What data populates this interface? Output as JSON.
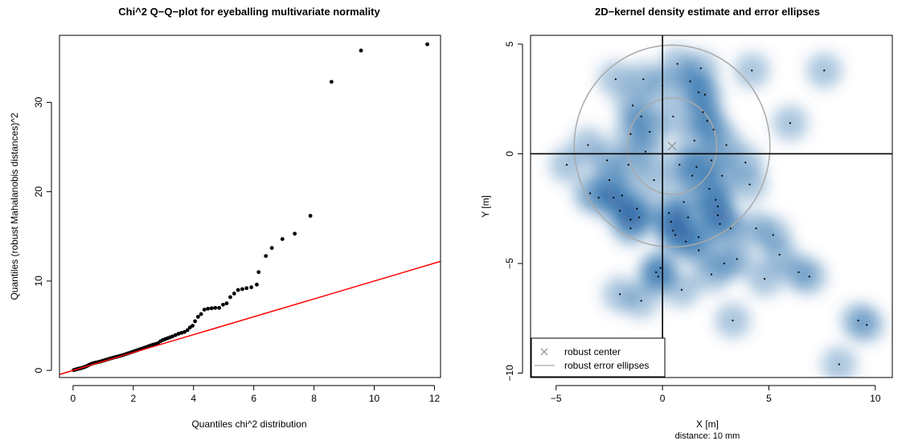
{
  "chart_data": [
    {
      "type": "scatter",
      "title": "Chi^2 Q−Q−plot for eyeballing multivariate normality",
      "xlabel": "Quantiles chi^2 distribution",
      "ylabel": "Quantiles (robust Mahalanobis distances)^2",
      "xlim": [
        -0.45,
        12.2
      ],
      "ylim": [
        -0.8,
        37.5
      ],
      "xticks": [
        0,
        2,
        4,
        6,
        8,
        10,
        12
      ],
      "yticks": [
        0,
        10,
        20,
        30
      ],
      "point_color": "#000000",
      "points": [
        [
          0.02,
          0.03
        ],
        [
          0.05,
          0.06
        ],
        [
          0.08,
          0.09
        ],
        [
          0.11,
          0.12
        ],
        [
          0.14,
          0.15
        ],
        [
          0.17,
          0.18
        ],
        [
          0.2,
          0.2
        ],
        [
          0.24,
          0.23
        ],
        [
          0.28,
          0.26
        ],
        [
          0.32,
          0.3
        ],
        [
          0.36,
          0.35
        ],
        [
          0.4,
          0.4
        ],
        [
          0.44,
          0.45
        ],
        [
          0.48,
          0.52
        ],
        [
          0.52,
          0.6
        ],
        [
          0.56,
          0.66
        ],
        [
          0.6,
          0.71
        ],
        [
          0.64,
          0.76
        ],
        [
          0.68,
          0.8
        ],
        [
          0.72,
          0.84
        ],
        [
          0.76,
          0.87
        ],
        [
          0.8,
          0.9
        ],
        [
          0.85,
          0.94
        ],
        [
          0.9,
          0.98
        ],
        [
          0.95,
          1.03
        ],
        [
          1.0,
          1.09
        ],
        [
          1.06,
          1.15
        ],
        [
          1.12,
          1.21
        ],
        [
          1.18,
          1.27
        ],
        [
          1.24,
          1.33
        ],
        [
          1.3,
          1.39
        ],
        [
          1.36,
          1.45
        ],
        [
          1.42,
          1.5
        ],
        [
          1.48,
          1.55
        ],
        [
          1.55,
          1.61
        ],
        [
          1.62,
          1.68
        ],
        [
          1.69,
          1.75
        ],
        [
          1.76,
          1.83
        ],
        [
          1.83,
          1.91
        ],
        [
          1.9,
          1.99
        ],
        [
          1.97,
          2.07
        ],
        [
          2.04,
          2.15
        ],
        [
          2.11,
          2.23
        ],
        [
          2.18,
          2.32
        ],
        [
          2.26,
          2.41
        ],
        [
          2.34,
          2.5
        ],
        [
          2.42,
          2.6
        ],
        [
          2.5,
          2.7
        ],
        [
          2.58,
          2.8
        ],
        [
          2.66,
          2.88
        ],
        [
          2.74,
          2.95
        ],
        [
          2.82,
          3.05
        ],
        [
          2.9,
          3.25
        ],
        [
          2.98,
          3.4
        ],
        [
          3.06,
          3.5
        ],
        [
          3.14,
          3.6
        ],
        [
          3.22,
          3.7
        ],
        [
          3.3,
          3.8
        ],
        [
          3.4,
          3.95
        ],
        [
          3.5,
          4.1
        ],
        [
          3.6,
          4.2
        ],
        [
          3.7,
          4.3
        ],
        [
          3.8,
          4.5
        ],
        [
          3.88,
          4.8
        ],
        [
          3.97,
          5.0
        ],
        [
          4.05,
          5.5
        ],
        [
          4.15,
          6.0
        ],
        [
          4.25,
          6.3
        ],
        [
          4.36,
          6.8
        ],
        [
          4.48,
          6.9
        ],
        [
          4.6,
          6.95
        ],
        [
          4.72,
          7.0
        ],
        [
          4.85,
          7.0
        ],
        [
          4.98,
          7.35
        ],
        [
          5.1,
          7.5
        ],
        [
          5.22,
          8.2
        ],
        [
          5.35,
          8.6
        ],
        [
          5.48,
          9.0
        ],
        [
          5.62,
          9.1
        ],
        [
          5.76,
          9.2
        ],
        [
          5.92,
          9.3
        ],
        [
          6.1,
          9.6
        ],
        [
          6.16,
          11.0
        ],
        [
          6.4,
          12.8
        ],
        [
          6.6,
          13.7
        ],
        [
          6.95,
          14.7
        ],
        [
          7.36,
          15.3
        ],
        [
          7.88,
          17.3
        ],
        [
          8.58,
          32.3
        ],
        [
          9.56,
          35.8
        ],
        [
          11.76,
          36.5
        ]
      ],
      "reference_line": {
        "color": "#ff0000",
        "slope": 1.0,
        "intercept": 0.0
      }
    },
    {
      "type": "heatmap",
      "title": "2D−kernel density estimate and error ellipses",
      "xlabel": "X [m]",
      "xlabel2": "distance: 10 mm",
      "ylabel": "Y [m]",
      "xlim": [
        -6.2,
        10.8
      ],
      "ylim": [
        -10.2,
        5.4
      ],
      "xticks": [
        -5,
        0,
        5,
        10
      ],
      "yticks": [
        -10,
        -5,
        0,
        5
      ],
      "density_color": "#08519c",
      "center": [
        0.45,
        0.35
      ],
      "center_color": "#999999",
      "ellipses": [
        {
          "cx": 0.45,
          "cy": 0.35,
          "rx": 2.1,
          "ry": 2.2
        },
        {
          "cx": 0.45,
          "cy": 0.35,
          "rx": 4.6,
          "ry": 4.6
        }
      ],
      "ellipse_color": "#aaaaaa",
      "points": [
        [
          -4.5,
          -0.5
        ],
        [
          -3.5,
          0.4
        ],
        [
          -3.4,
          -1.8
        ],
        [
          -3.0,
          -2.0
        ],
        [
          -2.6,
          -0.3
        ],
        [
          -2.5,
          -1.2
        ],
        [
          -2.3,
          -2.0
        ],
        [
          -2.2,
          3.4
        ],
        [
          -2.0,
          -2.6
        ],
        [
          -2.0,
          -6.4
        ],
        [
          -1.9,
          -1.9
        ],
        [
          -1.6,
          -0.5
        ],
        [
          -1.5,
          0.9
        ],
        [
          -1.5,
          -3.0
        ],
        [
          -1.5,
          -3.4
        ],
        [
          -1.4,
          2.2
        ],
        [
          -1.2,
          -2.5
        ],
        [
          -1.1,
          -2.9
        ],
        [
          -1.0,
          1.7
        ],
        [
          -1.0,
          -6.7
        ],
        [
          -0.9,
          3.4
        ],
        [
          -0.8,
          0.1
        ],
        [
          -0.6,
          1.0
        ],
        [
          -0.4,
          -1.2
        ],
        [
          -0.3,
          -5.4
        ],
        [
          -0.2,
          -5.6
        ],
        [
          0.0,
          3.1
        ],
        [
          0.3,
          -2.7
        ],
        [
          0.4,
          -3.1
        ],
        [
          0.5,
          1.7
        ],
        [
          0.5,
          -3.5
        ],
        [
          0.6,
          -3.7
        ],
        [
          0.7,
          4.1
        ],
        [
          0.8,
          -0.5
        ],
        [
          0.9,
          -6.2
        ],
        [
          1.0,
          -2.2
        ],
        [
          1.1,
          -4.0
        ],
        [
          1.2,
          -2.9
        ],
        [
          1.3,
          3.3
        ],
        [
          1.4,
          -1.0
        ],
        [
          1.5,
          0.6
        ],
        [
          1.6,
          -0.6
        ],
        [
          1.7,
          2.8
        ],
        [
          1.7,
          -3.8
        ],
        [
          1.8,
          3.9
        ],
        [
          1.9,
          1.9
        ],
        [
          2.0,
          2.7
        ],
        [
          2.1,
          1.5
        ],
        [
          2.2,
          -1.6
        ],
        [
          2.3,
          -0.3
        ],
        [
          2.3,
          -5.5
        ],
        [
          2.4,
          1.1
        ],
        [
          2.5,
          -2.1
        ],
        [
          2.6,
          -2.8
        ],
        [
          2.7,
          -3.2
        ],
        [
          2.8,
          -1.0
        ],
        [
          2.9,
          -5.0
        ],
        [
          3.0,
          0.4
        ],
        [
          3.2,
          -3.4
        ],
        [
          3.3,
          -7.6
        ],
        [
          3.5,
          -4.8
        ],
        [
          3.9,
          -0.4
        ],
        [
          4.1,
          -1.4
        ],
        [
          4.2,
          3.8
        ],
        [
          4.4,
          -3.4
        ],
        [
          4.8,
          -5.7
        ],
        [
          5.2,
          -3.7
        ],
        [
          5.5,
          -4.6
        ],
        [
          6.0,
          1.4
        ],
        [
          6.4,
          -5.4
        ],
        [
          6.9,
          -5.6
        ],
        [
          7.6,
          3.8
        ],
        [
          8.3,
          -9.6
        ],
        [
          9.2,
          -7.6
        ],
        [
          9.6,
          -7.8
        ],
        [
          1.7,
          -4.4
        ],
        [
          2.6,
          -2.4
        ],
        [
          -0.1,
          -5.2
        ]
      ],
      "legend": {
        "position": "bottom-left",
        "items": [
          {
            "label": "robust center",
            "symbol": "x",
            "color": "#999999"
          },
          {
            "label": "robust error ellipses",
            "symbol": "line",
            "color": "#aaaaaa"
          }
        ]
      }
    }
  ]
}
